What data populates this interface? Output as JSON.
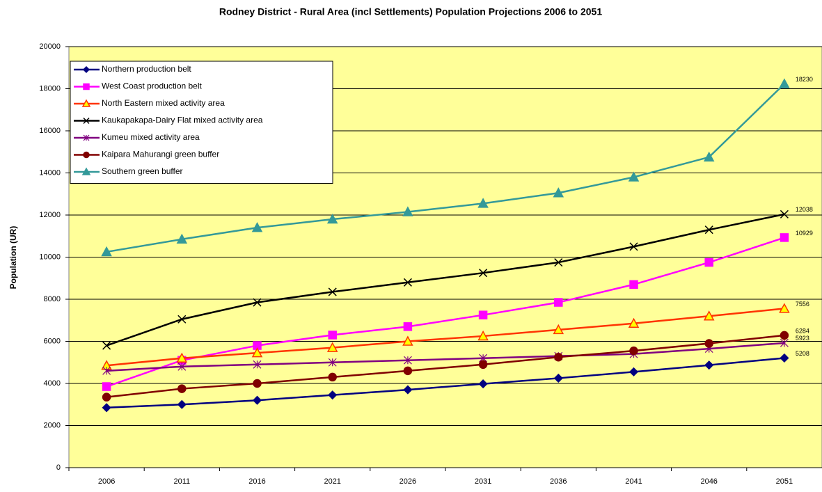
{
  "chart_data": {
    "type": "line",
    "title": "Rodney District - Rural Area (incl Settlements) Population Projections 2006 to 2051",
    "y_label": "Population (UR)",
    "categories": [
      "2006",
      "2011",
      "2016",
      "2021",
      "2026",
      "2031",
      "2036",
      "2041",
      "2046",
      "2051"
    ],
    "ylim": [
      0,
      20000
    ],
    "yticks": [
      0,
      2000,
      4000,
      6000,
      8000,
      10000,
      12000,
      14000,
      16000,
      18000,
      20000
    ],
    "grid": true,
    "legend": "upper left",
    "series": [
      {
        "name": "Northern production belt",
        "color": "#000080",
        "marker": "diamond",
        "values": [
          2850,
          3000,
          3200,
          3450,
          3700,
          3980,
          4250,
          4550,
          4870,
          5208
        ]
      },
      {
        "name": "West Coast production belt",
        "color": "#ff00ff",
        "marker": "square",
        "values": [
          3850,
          5100,
          5800,
          6300,
          6700,
          7250,
          7850,
          8700,
          9750,
          10929
        ]
      },
      {
        "name": "North Eastern mixed activity area",
        "color": "#ff3300",
        "marker": "triangle",
        "marker_fill": "#ffff00",
        "values": [
          4850,
          5200,
          5450,
          5700,
          6000,
          6250,
          6550,
          6850,
          7200,
          7556
        ]
      },
      {
        "name": "Kaukapakapa-Dairy Flat mixed activity area",
        "color": "#000000",
        "marker": "x",
        "values": [
          5800,
          7050,
          7850,
          8350,
          8800,
          9250,
          9750,
          10500,
          11300,
          12038
        ]
      },
      {
        "name": "Kumeu mixed activity area",
        "color": "#800080",
        "marker": "asterisk",
        "values": [
          4600,
          4800,
          4900,
          5000,
          5100,
          5200,
          5300,
          5400,
          5650,
          5923
        ]
      },
      {
        "name": "Kaipara Mahurangi green buffer",
        "color": "#800000",
        "marker": "circle",
        "values": [
          3350,
          3750,
          4000,
          4300,
          4600,
          4900,
          5250,
          5550,
          5900,
          6284
        ]
      },
      {
        "name": "Southern green buffer",
        "color": "#339999",
        "marker": "triangle",
        "values": [
          10250,
          10850,
          11400,
          11800,
          12150,
          12550,
          13050,
          13800,
          14750,
          18230
        ]
      }
    ]
  }
}
